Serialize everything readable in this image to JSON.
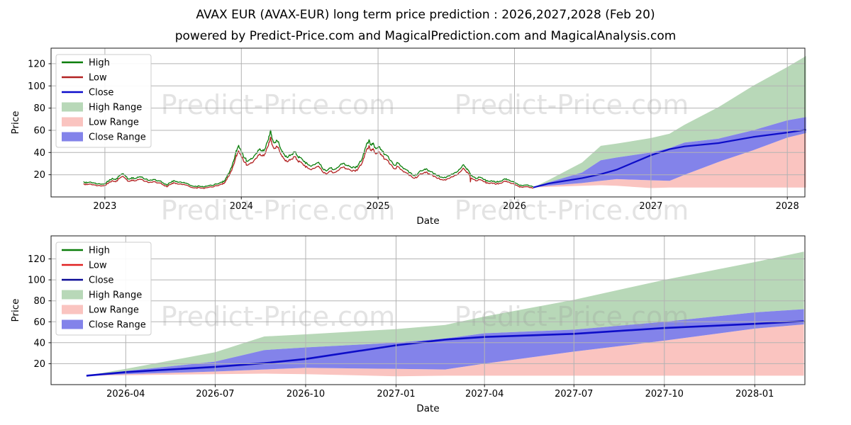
{
  "title": "AVAX EUR (AVAX-EUR) long term price prediction : 2026,2027,2028 (Feb 20)",
  "subtitle": "powered by Predict-Price.com and MagicalPrediction.com and MagicalAnalysis.com",
  "watermark_text": "Predict-Price.com",
  "colors": {
    "grid": "#b3b3b3",
    "spine": "#1a1a1a",
    "watermark": "#999999",
    "high_line": "#0a7d0a",
    "low_line_history": "#b22222",
    "close_line": "#0d0dc8",
    "high_range_fill": "#b8d8b8",
    "low_range_fill": "#fac4c0",
    "close_range_fill": "#8383ea"
  },
  "chart_data": {
    "type": "line",
    "history": {
      "note": "Daily High/Low/Close lines visually overlap; High approx Close +5%, Low approx Close -5%",
      "envelope_pct": 5,
      "noise_amp": 0.9,
      "low_spike": {
        "date": "2025-09-05",
        "value": 13.5
      },
      "close_points": [
        [
          "2022-11-05",
          13.0
        ],
        [
          "2022-11-14",
          11.8
        ],
        [
          "2022-11-22",
          12.6
        ],
        [
          "2022-12-04",
          11.6
        ],
        [
          "2022-12-14",
          11.0
        ],
        [
          "2022-12-24",
          10.8
        ],
        [
          "2023-01-02",
          11.2
        ],
        [
          "2023-01-12",
          13.8
        ],
        [
          "2023-01-21",
          15.8
        ],
        [
          "2023-01-30",
          14.6
        ],
        [
          "2023-02-08",
          17.6
        ],
        [
          "2023-02-17",
          19.6
        ],
        [
          "2023-02-26",
          17.2
        ],
        [
          "2023-03-07",
          15.0
        ],
        [
          "2023-03-14",
          16.4
        ],
        [
          "2023-03-22",
          15.4
        ],
        [
          "2023-04-01",
          16.6
        ],
        [
          "2023-04-10",
          17.0
        ],
        [
          "2023-04-20",
          15.0
        ],
        [
          "2023-05-01",
          14.0
        ],
        [
          "2023-05-10",
          14.8
        ],
        [
          "2023-05-21",
          13.4
        ],
        [
          "2023-06-01",
          13.0
        ],
        [
          "2023-06-10",
          10.6
        ],
        [
          "2023-06-16",
          9.8
        ],
        [
          "2023-06-26",
          12.0
        ],
        [
          "2023-07-04",
          13.8
        ],
        [
          "2023-07-15",
          12.4
        ],
        [
          "2023-07-26",
          12.0
        ],
        [
          "2023-08-06",
          11.6
        ],
        [
          "2023-08-18",
          9.6
        ],
        [
          "2023-09-01",
          9.0
        ],
        [
          "2023-09-15",
          8.6
        ],
        [
          "2023-10-01",
          9.0
        ],
        [
          "2023-10-14",
          9.6
        ],
        [
          "2023-11-01",
          11.0
        ],
        [
          "2023-11-10",
          12.4
        ],
        [
          "2023-11-16",
          13.0
        ],
        [
          "2023-11-21",
          16.0
        ],
        [
          "2023-11-29",
          20.0
        ],
        [
          "2023-12-06",
          25.0
        ],
        [
          "2023-12-11",
          30.0
        ],
        [
          "2023-12-16",
          36.0
        ],
        [
          "2023-12-21",
          41.0
        ],
        [
          "2023-12-25",
          44.0
        ],
        [
          "2023-12-29",
          41.0
        ],
        [
          "2024-01-04",
          38.0
        ],
        [
          "2024-01-10",
          33.0
        ],
        [
          "2024-01-16",
          30.5
        ],
        [
          "2024-01-25",
          32.0
        ],
        [
          "2024-02-02",
          33.5
        ],
        [
          "2024-02-11",
          37.0
        ],
        [
          "2024-02-19",
          41.0
        ],
        [
          "2024-02-26",
          39.0
        ],
        [
          "2024-03-06",
          42.0
        ],
        [
          "2024-03-11",
          47.0
        ],
        [
          "2024-03-16",
          52.0
        ],
        [
          "2024-03-19",
          57.0
        ],
        [
          "2024-03-23",
          50.0
        ],
        [
          "2024-03-29",
          46.0
        ],
        [
          "2024-04-06",
          48.0
        ],
        [
          "2024-04-13",
          43.0
        ],
        [
          "2024-04-19",
          38.5
        ],
        [
          "2024-04-26",
          35.5
        ],
        [
          "2024-05-04",
          33.5
        ],
        [
          "2024-05-13",
          36.0
        ],
        [
          "2024-05-22",
          38.5
        ],
        [
          "2024-05-29",
          35.5
        ],
        [
          "2024-06-06",
          33.5
        ],
        [
          "2024-06-16",
          30.0
        ],
        [
          "2024-06-26",
          28.0
        ],
        [
          "2024-07-06",
          26.0
        ],
        [
          "2024-07-16",
          27.5
        ],
        [
          "2024-07-26",
          29.5
        ],
        [
          "2024-08-06",
          24.0
        ],
        [
          "2024-08-16",
          22.0
        ],
        [
          "2024-08-26",
          24.5
        ],
        [
          "2024-09-07",
          23.5
        ],
        [
          "2024-09-19",
          26.0
        ],
        [
          "2024-09-29",
          28.5
        ],
        [
          "2024-10-11",
          26.5
        ],
        [
          "2024-10-21",
          25.0
        ],
        [
          "2024-11-01",
          24.5
        ],
        [
          "2024-11-11",
          28.5
        ],
        [
          "2024-11-21",
          34.0
        ],
        [
          "2024-11-28",
          42.0
        ],
        [
          "2024-12-04",
          46.5
        ],
        [
          "2024-12-09",
          48.0
        ],
        [
          "2024-12-14",
          44.0
        ],
        [
          "2024-12-19",
          46.0
        ],
        [
          "2024-12-26",
          41.0
        ],
        [
          "2025-01-03",
          43.0
        ],
        [
          "2025-01-12",
          39.0
        ],
        [
          "2025-01-22",
          36.0
        ],
        [
          "2025-02-03",
          31.0
        ],
        [
          "2025-02-13",
          27.0
        ],
        [
          "2025-02-23",
          29.0
        ],
        [
          "2025-03-08",
          25.0
        ],
        [
          "2025-03-18",
          23.0
        ],
        [
          "2025-04-01",
          19.5
        ],
        [
          "2025-04-09",
          18.0
        ],
        [
          "2025-04-19",
          20.5
        ],
        [
          "2025-05-01",
          22.5
        ],
        [
          "2025-05-10",
          24.0
        ],
        [
          "2025-05-20",
          21.5
        ],
        [
          "2025-06-01",
          19.8
        ],
        [
          "2025-06-10",
          18.0
        ],
        [
          "2025-06-20",
          16.8
        ],
        [
          "2025-07-01",
          16.2
        ],
        [
          "2025-07-11",
          17.8
        ],
        [
          "2025-07-21",
          19.5
        ],
        [
          "2025-08-01",
          21.5
        ],
        [
          "2025-08-10",
          24.5
        ],
        [
          "2025-08-17",
          27.5
        ],
        [
          "2025-08-24",
          24.5
        ],
        [
          "2025-09-01",
          22.0
        ],
        [
          "2025-09-05",
          19.0
        ],
        [
          "2025-09-12",
          17.0
        ],
        [
          "2025-09-22",
          15.6
        ],
        [
          "2025-10-02",
          16.6
        ],
        [
          "2025-10-12",
          14.6
        ],
        [
          "2025-10-22",
          13.2
        ],
        [
          "2025-11-01",
          13.6
        ],
        [
          "2025-11-11",
          12.2
        ],
        [
          "2025-11-21",
          13.0
        ],
        [
          "2025-12-01",
          14.4
        ],
        [
          "2025-12-10",
          15.4
        ],
        [
          "2025-12-20",
          13.6
        ],
        [
          "2026-01-01",
          12.2
        ],
        [
          "2026-01-10",
          10.6
        ],
        [
          "2026-01-20",
          9.6
        ],
        [
          "2026-02-01",
          10.0
        ],
        [
          "2026-02-10",
          9.2
        ],
        [
          "2026-02-20",
          8.5
        ]
      ]
    },
    "prediction": {
      "dates": [
        "2026-02-20",
        "2026-04-01",
        "2026-07-01",
        "2026-08-20",
        "2026-10-01",
        "2027-01-01",
        "2027-02-20",
        "2027-04-01",
        "2027-07-01",
        "2027-10-01",
        "2028-01-01",
        "2028-02-20"
      ],
      "close": [
        8.5,
        12.0,
        17.0,
        20.5,
        24.5,
        37.5,
        43.0,
        45.5,
        48.5,
        54.0,
        58.0,
        60.5
      ],
      "close_range_upper": [
        8.5,
        13.0,
        22.0,
        33.0,
        35.5,
        40.0,
        44.0,
        49.0,
        52.5,
        60.0,
        69.0,
        72.0
      ],
      "close_range_lower": [
        8.5,
        10.0,
        12.5,
        14.5,
        16.0,
        15.0,
        14.5,
        20.0,
        31.5,
        42.0,
        53.5,
        57.5
      ],
      "high_range_upper": [
        8.5,
        15.0,
        31.0,
        46.0,
        48.0,
        53.0,
        57.0,
        65.0,
        81.0,
        100.0,
        117.0,
        127.0
      ],
      "low_range_lower": [
        8.5,
        9.0,
        10.0,
        10.5,
        10.0,
        8.0,
        8.5,
        8.5,
        8.5,
        8.5,
        8.5,
        8.5
      ]
    },
    "charts": [
      {
        "id": "top",
        "xlabel": "Date",
        "ylabel": "Price",
        "x_domain": [
          "2022-08-10",
          "2028-02-17"
        ],
        "ylim": [
          0,
          134
        ],
        "y_ticks": [
          20,
          40,
          60,
          80,
          100,
          120
        ],
        "x_ticks": [
          {
            "label": "2023",
            "date": "2023-01-01"
          },
          {
            "label": "2024",
            "date": "2024-01-01"
          },
          {
            "label": "2025",
            "date": "2025-01-01"
          },
          {
            "label": "2026",
            "date": "2026-01-01"
          },
          {
            "label": "2027",
            "date": "2027-01-01"
          },
          {
            "label": "2028",
            "date": "2028-01-01"
          }
        ],
        "grid": true,
        "legend_position": "upper left",
        "legend": [
          {
            "label": "High",
            "swatch": "line",
            "color": "#0a7d0a"
          },
          {
            "label": "Low",
            "swatch": "line",
            "color": "#b22222"
          },
          {
            "label": "Close",
            "swatch": "line",
            "color": "#0d0dcc"
          },
          {
            "label": "High Range",
            "swatch": "patch",
            "color": "#b8d8b8"
          },
          {
            "label": "Low Range",
            "swatch": "patch",
            "color": "#fac4c0"
          },
          {
            "label": "Close Range",
            "swatch": "patch",
            "color": "#8383ea"
          }
        ]
      },
      {
        "id": "bottom",
        "xlabel": "Date",
        "ylabel": "Price",
        "x_domain": [
          "2026-01-15",
          "2028-02-21"
        ],
        "ylim": [
          0,
          142
        ],
        "y_ticks": [
          20,
          40,
          60,
          80,
          100,
          120
        ],
        "x_ticks": [
          {
            "label": "2026-04",
            "date": "2026-04-01"
          },
          {
            "label": "2026-07",
            "date": "2026-07-01"
          },
          {
            "label": "2026-10",
            "date": "2026-10-01"
          },
          {
            "label": "2027-01",
            "date": "2027-01-01"
          },
          {
            "label": "2027-04",
            "date": "2027-04-01"
          },
          {
            "label": "2027-07",
            "date": "2027-07-01"
          },
          {
            "label": "2027-10",
            "date": "2027-10-01"
          },
          {
            "label": "2028-01",
            "date": "2028-01-01"
          }
        ],
        "grid": true,
        "legend_position": "upper left",
        "legend": [
          {
            "label": "High",
            "swatch": "line",
            "color": "#0a7d0a"
          },
          {
            "label": "Low",
            "swatch": "line",
            "color": "#e02222"
          },
          {
            "label": "Close",
            "swatch": "line",
            "color": "#0a0a96"
          },
          {
            "label": "High Range",
            "swatch": "patch",
            "color": "#b8d8b8"
          },
          {
            "label": "Low Range",
            "swatch": "patch",
            "color": "#fac4c0"
          },
          {
            "label": "Close Range",
            "swatch": "patch",
            "color": "#8383ea"
          }
        ]
      }
    ]
  }
}
